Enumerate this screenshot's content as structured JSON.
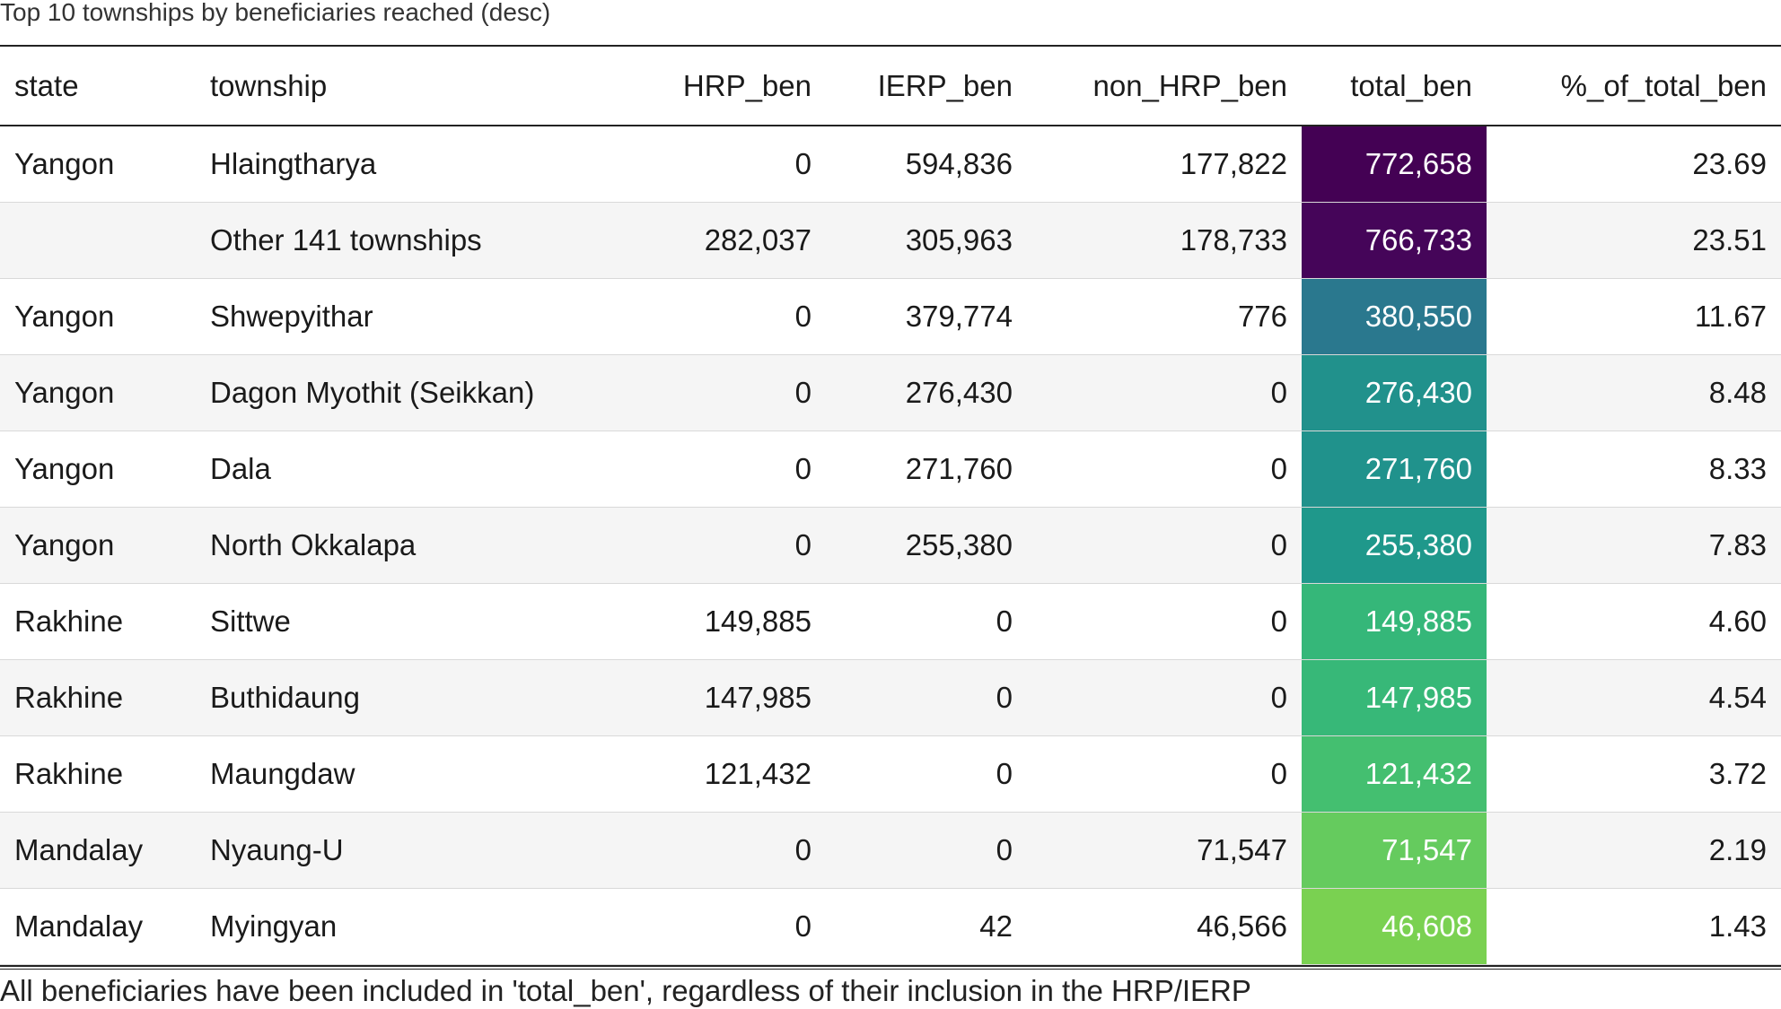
{
  "chart_data": {
    "type": "table",
    "title": "Top 10 townships by beneficiaries reached (desc)",
    "columns": [
      "state",
      "township",
      "HRP_ben",
      "IERP_ben",
      "non_HRP_ben",
      "total_ben",
      "%_of_total_ben"
    ],
    "rows": [
      {
        "state": "Yangon",
        "township": "Hlaingtharya",
        "HRP_ben": "0",
        "IERP_ben": "594,836",
        "non_HRP_ben": "177,822",
        "total_ben": "772,658",
        "pct": "23.69",
        "total_color": "#440154"
      },
      {
        "state": "",
        "township": "Other 141 townships",
        "HRP_ben": "282,037",
        "IERP_ben": "305,963",
        "non_HRP_ben": "178,733",
        "total_ben": "766,733",
        "pct": "23.51",
        "total_color": "#450559"
      },
      {
        "state": "Yangon",
        "township": "Shwepyithar",
        "HRP_ben": "0",
        "IERP_ben": "379,774",
        "non_HRP_ben": "776",
        "total_ben": "380,550",
        "pct": "11.67",
        "total_color": "#2a788e"
      },
      {
        "state": "Yangon",
        "township": "Dagon Myothit (Seikkan)",
        "HRP_ben": "0",
        "IERP_ben": "276,430",
        "non_HRP_ben": "0",
        "total_ben": "276,430",
        "pct": "8.48",
        "total_color": "#21918c"
      },
      {
        "state": "Yangon",
        "township": "Dala",
        "HRP_ben": "0",
        "IERP_ben": "271,760",
        "non_HRP_ben": "0",
        "total_ben": "271,760",
        "pct": "8.33",
        "total_color": "#20928c"
      },
      {
        "state": "Yangon",
        "township": "North Okkalapa",
        "HRP_ben": "0",
        "IERP_ben": "255,380",
        "non_HRP_ben": "0",
        "total_ben": "255,380",
        "pct": "7.83",
        "total_color": "#1f988b"
      },
      {
        "state": "Rakhine",
        "township": "Sittwe",
        "HRP_ben": "149,885",
        "IERP_ben": "0",
        "non_HRP_ben": "0",
        "total_ben": "149,885",
        "pct": "4.60",
        "total_color": "#35b779"
      },
      {
        "state": "Rakhine",
        "township": "Buthidaung",
        "HRP_ben": "147,985",
        "IERP_ben": "0",
        "non_HRP_ben": "0",
        "total_ben": "147,985",
        "pct": "4.54",
        "total_color": "#37b878"
      },
      {
        "state": "Rakhine",
        "township": "Maungdaw",
        "HRP_ben": "121,432",
        "IERP_ben": "0",
        "non_HRP_ben": "0",
        "total_ben": "121,432",
        "pct": "3.72",
        "total_color": "#44bf70"
      },
      {
        "state": "Mandalay",
        "township": "Nyaung-U",
        "HRP_ben": "0",
        "IERP_ben": "0",
        "non_HRP_ben": "71,547",
        "total_ben": "71,547",
        "pct": "2.19",
        "total_color": "#65cb5e"
      },
      {
        "state": "Mandalay",
        "township": "Myingyan",
        "HRP_ben": "0",
        "IERP_ben": "42",
        "non_HRP_ben": "46,566",
        "total_ben": "46,608",
        "pct": "1.43",
        "total_color": "#7ad151"
      }
    ],
    "footnote": "All beneficiaries have been included in 'total_ben', regardless of their inclusion in the HRP/IERP"
  }
}
